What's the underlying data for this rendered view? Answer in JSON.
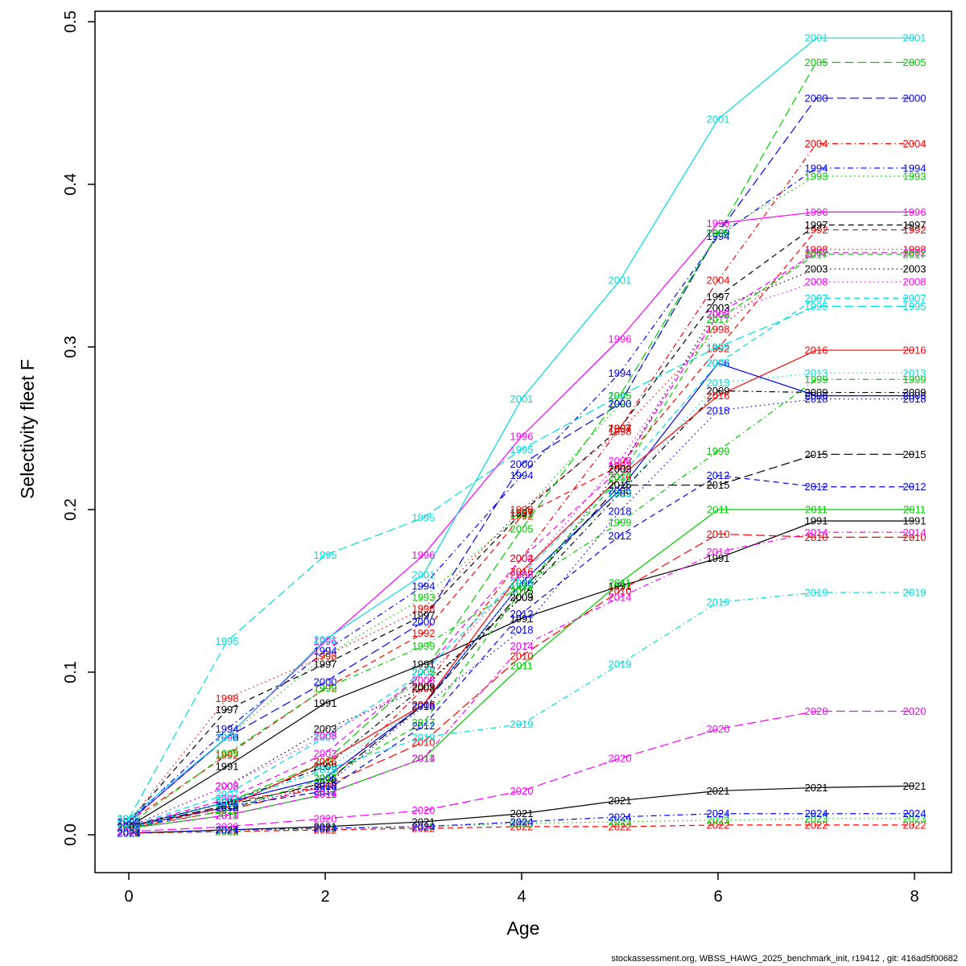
{
  "chart_data": {
    "type": "line",
    "title": "",
    "xlabel": "Age",
    "ylabel": "Selectivity fleet F",
    "x": [
      0,
      1,
      2,
      3,
      4,
      5,
      6,
      7,
      8
    ],
    "xlim": [
      0,
      8
    ],
    "ylim": [
      0,
      0.5
    ],
    "x_ticks": [
      "0",
      "2",
      "4",
      "6",
      "8"
    ],
    "x_tick_values": [
      0,
      2,
      4,
      6,
      8
    ],
    "y_ticks": [
      "0.0",
      "0.1",
      "0.2",
      "0.3",
      "0.4",
      "0.5"
    ],
    "y_tick_values": [
      0,
      0.1,
      0.2,
      0.3,
      0.4,
      0.5
    ],
    "grid": false,
    "legend_position": "none",
    "point_label_style": "each point labeled with its year, colored like its line",
    "series": [
      {
        "name": "1991",
        "color": "#000000",
        "linetype": "solid",
        "values": [
          0.005,
          0.042,
          0.081,
          0.105,
          0.133,
          0.153,
          0.17,
          0.193,
          0.193
        ]
      },
      {
        "name": "1992",
        "color": "#ff0000",
        "linetype": "dashed",
        "values": [
          0.008,
          0.049,
          0.09,
          0.124,
          0.196,
          0.227,
          0.299,
          0.372,
          0.372
        ]
      },
      {
        "name": "1993",
        "color": "#00cd00",
        "linetype": "dotted",
        "values": [
          0.008,
          0.06,
          0.11,
          0.146,
          0.197,
          0.265,
          0.37,
          0.405,
          0.405
        ]
      },
      {
        "name": "1994",
        "color": "#0000ff",
        "linetype": "dotdash",
        "values": [
          0.008,
          0.065,
          0.113,
          0.153,
          0.221,
          0.284,
          0.368,
          0.41,
          0.41
        ]
      },
      {
        "name": "1995",
        "color": "#00dddd",
        "linetype": "longdash",
        "values": [
          0.01,
          0.119,
          0.172,
          0.195,
          0.237,
          0.27,
          0.3,
          0.325,
          0.325
        ]
      },
      {
        "name": "1996",
        "color": "#ff00ff",
        "linetype": "solid",
        "values": [
          0.008,
          0.06,
          0.119,
          0.172,
          0.245,
          0.305,
          0.376,
          0.383,
          0.383
        ]
      },
      {
        "name": "1997",
        "color": "#000000",
        "linetype": "dashed",
        "values": [
          0.008,
          0.077,
          0.105,
          0.135,
          0.198,
          0.25,
          0.331,
          0.375,
          0.375
        ]
      },
      {
        "name": "1998",
        "color": "#ff0000",
        "linetype": "dotted",
        "values": [
          0.008,
          0.084,
          0.11,
          0.139,
          0.2,
          0.248,
          0.311,
          0.36,
          0.36
        ]
      },
      {
        "name": "1999",
        "color": "#00cd00",
        "linetype": "dotdash",
        "values": [
          0.006,
          0.05,
          0.09,
          0.116,
          0.153,
          0.192,
          0.236,
          0.28,
          0.28
        ]
      },
      {
        "name": "2000",
        "color": "#0000ff",
        "linetype": "longdash",
        "values": [
          0.008,
          0.06,
          0.094,
          0.131,
          0.228,
          0.265,
          0.37,
          0.453,
          0.453
        ]
      },
      {
        "name": "2001",
        "color": "#00dddd",
        "linetype": "solid",
        "values": [
          0.01,
          0.06,
          0.12,
          0.16,
          0.268,
          0.341,
          0.44,
          0.49,
          0.49
        ]
      },
      {
        "name": "2002",
        "color": "#ff00ff",
        "linetype": "dashed",
        "values": [
          0.005,
          0.022,
          0.05,
          0.1,
          0.17,
          0.225,
          0.32,
          0.358,
          0.358
        ]
      },
      {
        "name": "2003",
        "color": "#000000",
        "linetype": "dotted",
        "values": [
          0.005,
          0.03,
          0.065,
          0.09,
          0.146,
          0.225,
          0.324,
          0.348,
          0.348
        ]
      },
      {
        "name": "2004",
        "color": "#ff0000",
        "linetype": "dotdash",
        "values": [
          0.005,
          0.02,
          0.03,
          0.09,
          0.17,
          0.25,
          0.341,
          0.425,
          0.425
        ]
      },
      {
        "name": "2005",
        "color": "#00cd00",
        "linetype": "longdash",
        "values": [
          0.005,
          0.02,
          0.045,
          0.1,
          0.188,
          0.27,
          0.37,
          0.475,
          0.475
        ]
      },
      {
        "name": "2006",
        "color": "#0000ff",
        "linetype": "solid",
        "values": [
          0.005,
          0.02,
          0.035,
          0.08,
          0.155,
          0.212,
          0.29,
          0.27,
          0.27
        ]
      },
      {
        "name": "2007",
        "color": "#00dddd",
        "linetype": "dashed",
        "values": [
          0.005,
          0.025,
          0.06,
          0.1,
          0.16,
          0.22,
          0.29,
          0.33,
          0.33
        ]
      },
      {
        "name": "2008",
        "color": "#ff00ff",
        "linetype": "dotted",
        "values": [
          0.005,
          0.03,
          0.061,
          0.095,
          0.16,
          0.23,
          0.32,
          0.34,
          0.34
        ]
      },
      {
        "name": "2009",
        "color": "#000000",
        "linetype": "dotdash",
        "values": [
          0.005,
          0.02,
          0.042,
          0.091,
          0.146,
          0.21,
          0.273,
          0.272,
          0.272
        ]
      },
      {
        "name": "2010",
        "color": "#ff0000",
        "linetype": "longdash",
        "values": [
          0.004,
          0.015,
          0.03,
          0.057,
          0.11,
          0.15,
          0.185,
          0.183,
          0.183
        ]
      },
      {
        "name": "2011",
        "color": "#00cd00",
        "linetype": "solid",
        "values": [
          0.004,
          0.012,
          0.025,
          0.047,
          0.104,
          0.155,
          0.2,
          0.2,
          0.2
        ]
      },
      {
        "name": "2012",
        "color": "#0000ff",
        "linetype": "dashed",
        "values": [
          0.004,
          0.017,
          0.027,
          0.067,
          0.136,
          0.184,
          0.221,
          0.214,
          0.214
        ]
      },
      {
        "name": "2013",
        "color": "#00dddd",
        "linetype": "dotted",
        "values": [
          0.005,
          0.02,
          0.04,
          0.08,
          0.155,
          0.21,
          0.278,
          0.284,
          0.284
        ]
      },
      {
        "name": "2014",
        "color": "#ff00ff",
        "linetype": "dotdash",
        "values": [
          0.004,
          0.012,
          0.025,
          0.047,
          0.116,
          0.146,
          0.174,
          0.186,
          0.186
        ]
      },
      {
        "name": "2015",
        "color": "#000000",
        "linetype": "longdash",
        "values": [
          0.005,
          0.018,
          0.032,
          0.08,
          0.15,
          0.215,
          0.215,
          0.234,
          0.234
        ]
      },
      {
        "name": "2016",
        "color": "#ff0000",
        "linetype": "solid",
        "values": [
          0.005,
          0.017,
          0.045,
          0.08,
          0.162,
          0.22,
          0.27,
          0.298,
          0.298
        ]
      },
      {
        "name": "2017",
        "color": "#00cd00",
        "linetype": "dashed",
        "values": [
          0.004,
          0.015,
          0.035,
          0.069,
          0.15,
          0.22,
          0.317,
          0.357,
          0.357
        ]
      },
      {
        "name": "2018",
        "color": "#0000ff",
        "linetype": "dotted",
        "values": [
          0.005,
          0.017,
          0.03,
          0.079,
          0.126,
          0.199,
          0.261,
          0.268,
          0.268
        ]
      },
      {
        "name": "2019",
        "color": "#00dddd",
        "linetype": "dotdash",
        "values": [
          0.004,
          0.02,
          0.04,
          0.06,
          0.068,
          0.105,
          0.143,
          0.149,
          0.149
        ]
      },
      {
        "name": "2020",
        "color": "#ff00ff",
        "linetype": "longdash",
        "values": [
          0.002,
          0.005,
          0.01,
          0.015,
          0.027,
          0.047,
          0.065,
          0.076,
          0.076
        ]
      },
      {
        "name": "2021",
        "color": "#000000",
        "linetype": "solid",
        "values": [
          0.001,
          0.003,
          0.005,
          0.008,
          0.013,
          0.021,
          0.027,
          0.029,
          0.03
        ]
      },
      {
        "name": "2022",
        "color": "#ff0000",
        "linetype": "dashed",
        "values": [
          0.001,
          0.002,
          0.003,
          0.004,
          0.005,
          0.005,
          0.006,
          0.006,
          0.006
        ]
      },
      {
        "name": "2023",
        "color": "#00cd00",
        "linetype": "dotted",
        "values": [
          0.001,
          0.002,
          0.004,
          0.005,
          0.007,
          0.008,
          0.009,
          0.01,
          0.01
        ]
      },
      {
        "name": "2024",
        "color": "#0000ff",
        "linetype": "dotdash",
        "values": [
          0.001,
          0.003,
          0.004,
          0.005,
          0.008,
          0.011,
          0.013,
          0.013,
          0.013
        ]
      }
    ]
  },
  "axes": {
    "x_title": "Age",
    "y_title": "Selectivity fleet F"
  },
  "footer": {
    "text": "stockassessment.org, WBSS_HAWG_2025_benchmark_init, r19412 , git: 416ad5f00682"
  }
}
